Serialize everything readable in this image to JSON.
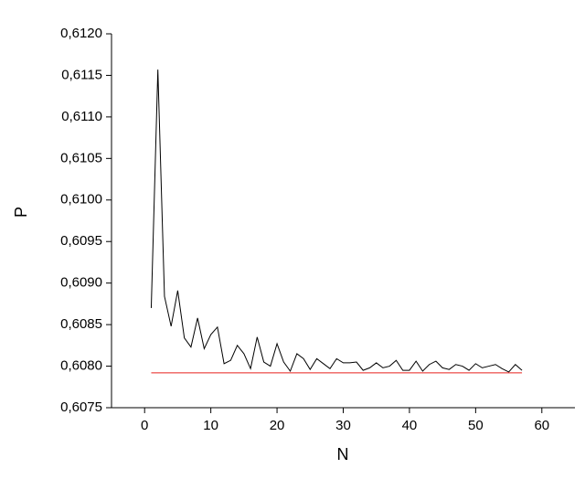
{
  "chart_data": {
    "type": "line",
    "x_label": "N",
    "y_label": "P",
    "xlim": [
      -5,
      65
    ],
    "xticks": [
      0,
      10,
      20,
      30,
      40,
      50,
      60
    ],
    "ylim": [
      0.6075,
      0.612
    ],
    "yticks": [
      {
        "value": 0.6075,
        "label": "0,6075"
      },
      {
        "value": 0.608,
        "label": "0,6080"
      },
      {
        "value": 0.6085,
        "label": "0,6085"
      },
      {
        "value": 0.609,
        "label": "0,6090"
      },
      {
        "value": 0.6095,
        "label": "0,6095"
      },
      {
        "value": 0.61,
        "label": "0,6100"
      },
      {
        "value": 0.6105,
        "label": "0,6105"
      },
      {
        "value": 0.611,
        "label": "0,6110"
      },
      {
        "value": 0.6115,
        "label": "0,6115"
      },
      {
        "value": 0.612,
        "label": "0,6120"
      }
    ],
    "series": [
      {
        "color": "#000000",
        "x": [
          1,
          2,
          3,
          4,
          5,
          6,
          7,
          8,
          9,
          10,
          11,
          12,
          13,
          14,
          15,
          16,
          17,
          18,
          19,
          20,
          21,
          22,
          23,
          24,
          25,
          26,
          27,
          28,
          29,
          30,
          31,
          32,
          33,
          34,
          35,
          36,
          37,
          38,
          39,
          40,
          41,
          42,
          43,
          44,
          45,
          46,
          47,
          48,
          49,
          50,
          51,
          52,
          53,
          54,
          55,
          56,
          57
        ],
        "values": [
          0.6087,
          0.61157,
          0.60884,
          0.60848,
          0.60891,
          0.60834,
          0.60823,
          0.60858,
          0.60821,
          0.60838,
          0.60847,
          0.60803,
          0.60807,
          0.60825,
          0.60815,
          0.60797,
          0.60835,
          0.60805,
          0.608,
          0.60827,
          0.60805,
          0.60794,
          0.60815,
          0.60809,
          0.60796,
          0.60809,
          0.60803,
          0.60797,
          0.60809,
          0.60804,
          0.60804,
          0.60805,
          0.60795,
          0.60798,
          0.60804,
          0.60798,
          0.608,
          0.60807,
          0.60795,
          0.60795,
          0.60806,
          0.60794,
          0.60802,
          0.60806,
          0.60798,
          0.60796,
          0.60802,
          0.608,
          0.60795,
          0.60803,
          0.60798,
          0.608,
          0.60802,
          0.60797,
          0.60793,
          0.60802,
          0.60795
        ]
      },
      {
        "color": "#e8201e",
        "x": [
          1,
          57
        ],
        "values": [
          0.60792,
          0.60792
        ]
      }
    ]
  }
}
